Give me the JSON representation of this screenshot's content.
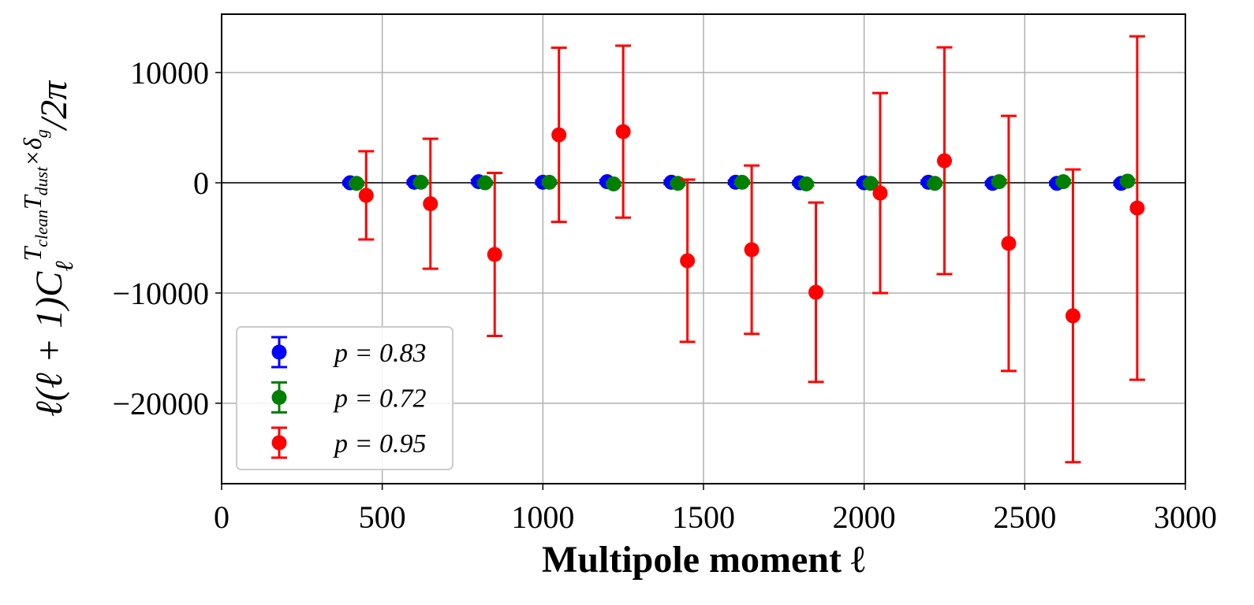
{
  "chart_data": {
    "type": "errorbar",
    "x_label": "Multipole moment ℓ",
    "y_label": [
      "ℓ(ℓ + 1)C",
      "ℓ",
      "T",
      "clean",
      "T",
      "dust",
      "×δ",
      "g",
      "/2π"
    ],
    "series": [
      {
        "name": "p = 0.83",
        "color": "#0000ff",
        "x": [
          400,
          600,
          800,
          1000,
          1200,
          1400,
          1600,
          1800,
          2000,
          2200,
          2400,
          2600,
          2800
        ],
        "values": [
          0,
          50,
          100,
          50,
          100,
          50,
          50,
          0,
          0,
          50,
          -50,
          -50,
          -50
        ],
        "errors": [
          150,
          150,
          150,
          150,
          150,
          150,
          150,
          150,
          150,
          150,
          150,
          150,
          150
        ]
      },
      {
        "name": "p = 0.72",
        "color": "#008000",
        "x": [
          420,
          620,
          820,
          1020,
          1220,
          1420,
          1620,
          1820,
          2020,
          2220,
          2420,
          2620,
          2820
        ],
        "values": [
          -50,
          50,
          0,
          50,
          -100,
          -50,
          50,
          -100,
          -50,
          -50,
          100,
          100,
          150
        ],
        "errors": [
          150,
          150,
          150,
          150,
          150,
          150,
          150,
          150,
          150,
          150,
          150,
          150,
          150
        ]
      },
      {
        "name": "p = 0.95",
        "color": "#ff0000",
        "x": [
          450,
          650,
          850,
          1050,
          1250,
          1450,
          1650,
          1850,
          2050,
          2250,
          2450,
          2650,
          2850
        ],
        "values": [
          -1140,
          -1900,
          -6500,
          4350,
          4640,
          -7070,
          -6070,
          -9930,
          -930,
          2000,
          -5500,
          -12070,
          -2290
        ],
        "errors": [
          4000,
          5900,
          7400,
          7900,
          7800,
          7360,
          7640,
          8140,
          9070,
          10290,
          11570,
          13280,
          15580
        ]
      }
    ],
    "xlim": [
      0,
      3000
    ],
    "xticks": [
      0,
      500,
      1000,
      1500,
      2000,
      2500,
      3000
    ],
    "ylim": [
      -27300,
      15300
    ],
    "yticks": [
      {
        "value": -20000,
        "label": "−20000"
      },
      {
        "value": -10000,
        "label": "−10000"
      },
      0,
      10000
    ],
    "hline": 0,
    "grid": true,
    "legend": "lower left"
  }
}
